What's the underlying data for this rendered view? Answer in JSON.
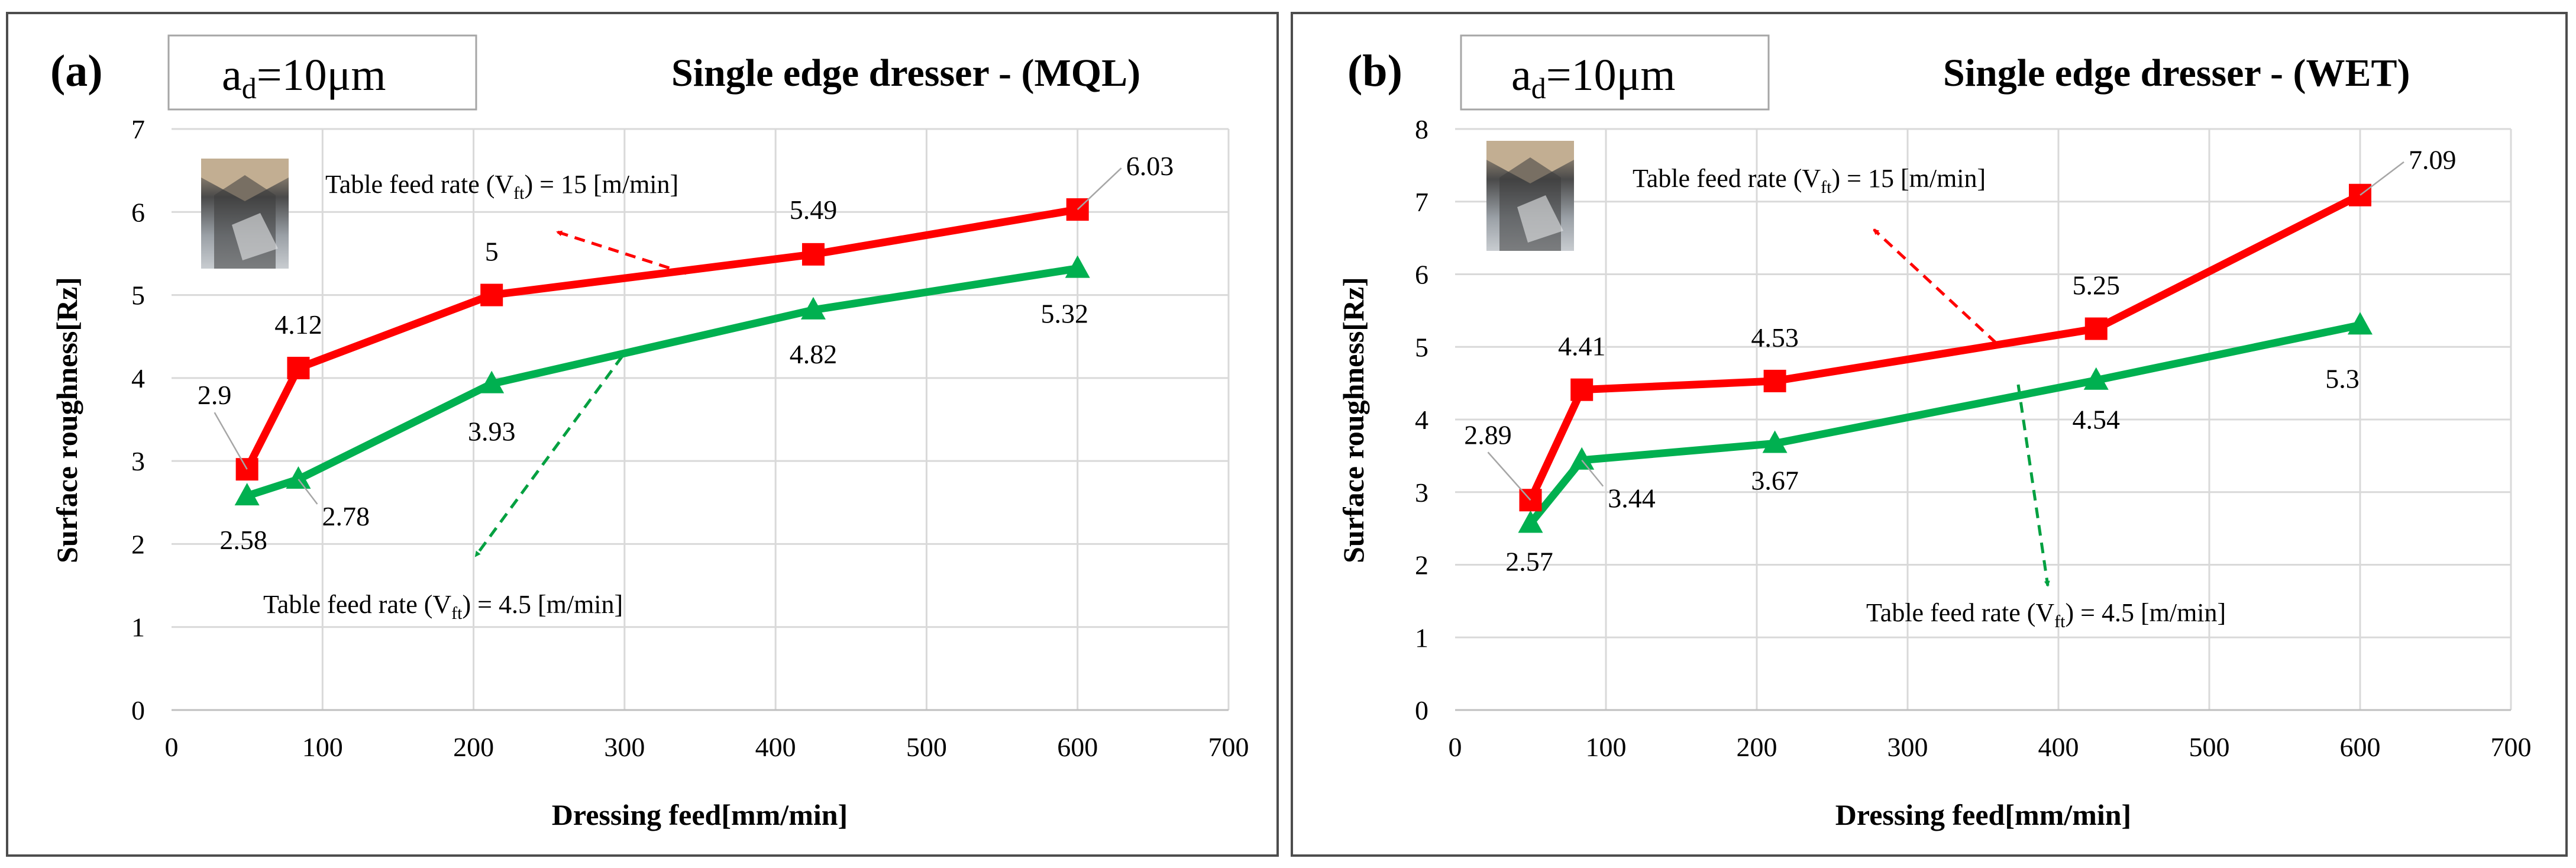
{
  "chart_data": [
    {
      "type": "line",
      "panel_label": "(a)",
      "param_box": {
        "main": "a",
        "sub": "d",
        "rest": "=10μm"
      },
      "title": "Single edge dresser - (MQL)",
      "xlabel": "Dressing feed[mm/min]",
      "ylabel": "Surface roughness[Rz]",
      "xlim": [
        0,
        700
      ],
      "ylim": [
        0,
        7
      ],
      "xticks": [
        "0",
        "100",
        "200",
        "300",
        "400",
        "500",
        "600",
        "700"
      ],
      "yticks": [
        "0",
        "1",
        "2",
        "3",
        "4",
        "5",
        "6",
        "7"
      ],
      "grid": true,
      "series": [
        {
          "name": "Table feed rate (Vft) = 15 [m/min]",
          "color": "#ff0000",
          "marker": "square",
          "x": [
            50,
            84,
            212,
            425,
            600
          ],
          "y": [
            2.9,
            4.12,
            5.0,
            5.49,
            6.03
          ],
          "labels": [
            "2.9",
            "4.12",
            "5",
            "5.49",
            "6.03"
          ]
        },
        {
          "name": "Table feed rate (Vft) = 4.5 [m/min]",
          "color": "#00b050",
          "marker": "triangle",
          "x": [
            50,
            84,
            212,
            425,
            600
          ],
          "y": [
            2.58,
            2.78,
            3.93,
            4.82,
            5.32
          ],
          "labels": [
            "2.58",
            "2.78",
            "3.93",
            "4.82",
            "5.32"
          ]
        }
      ],
      "annotations": {
        "red": {
          "pre": "Table feed rate (V",
          "sub": "ft",
          "post": ") = 15 [m/min]"
        },
        "green": {
          "pre": "Table feed rate (V",
          "sub": "ft",
          "post": ") = 4.5 [m/min]"
        }
      }
    },
    {
      "type": "line",
      "panel_label": "(b)",
      "param_box": {
        "main": "a",
        "sub": "d",
        "rest": "=10μm"
      },
      "title": "Single edge dresser - (WET)",
      "xlabel": "Dressing feed[mm/min]",
      "ylabel": "Surface roughness[Rz]",
      "xlim": [
        0,
        700
      ],
      "ylim": [
        0,
        8
      ],
      "xticks": [
        "0",
        "100",
        "200",
        "300",
        "400",
        "500",
        "600",
        "700"
      ],
      "yticks": [
        "0",
        "1",
        "2",
        "3",
        "4",
        "5",
        "6",
        "7",
        "8"
      ],
      "grid": true,
      "series": [
        {
          "name": "Table feed rate (Vft) = 15 [m/min]",
          "color": "#ff0000",
          "marker": "square",
          "x": [
            50,
            84,
            212,
            425,
            600
          ],
          "y": [
            2.89,
            4.41,
            4.53,
            5.25,
            7.09
          ],
          "labels": [
            "2.89",
            "4.41",
            "4.53",
            "5.25",
            "7.09"
          ]
        },
        {
          "name": "Table feed rate (Vft) = 4.5 [m/min]",
          "color": "#00b050",
          "marker": "triangle",
          "x": [
            50,
            84,
            212,
            425,
            600
          ],
          "y": [
            2.57,
            3.44,
            3.67,
            4.54,
            5.3
          ],
          "labels": [
            "2.57",
            "3.44",
            "3.67",
            "4.54",
            "5.3"
          ]
        }
      ],
      "annotations": {
        "red": {
          "pre": "Table feed rate (V",
          "sub": "ft",
          "post": ") = 15 [m/min]"
        },
        "green": {
          "pre": "Table feed rate (V",
          "sub": "ft",
          "post": ") = 4.5 [m/min]"
        }
      }
    }
  ]
}
